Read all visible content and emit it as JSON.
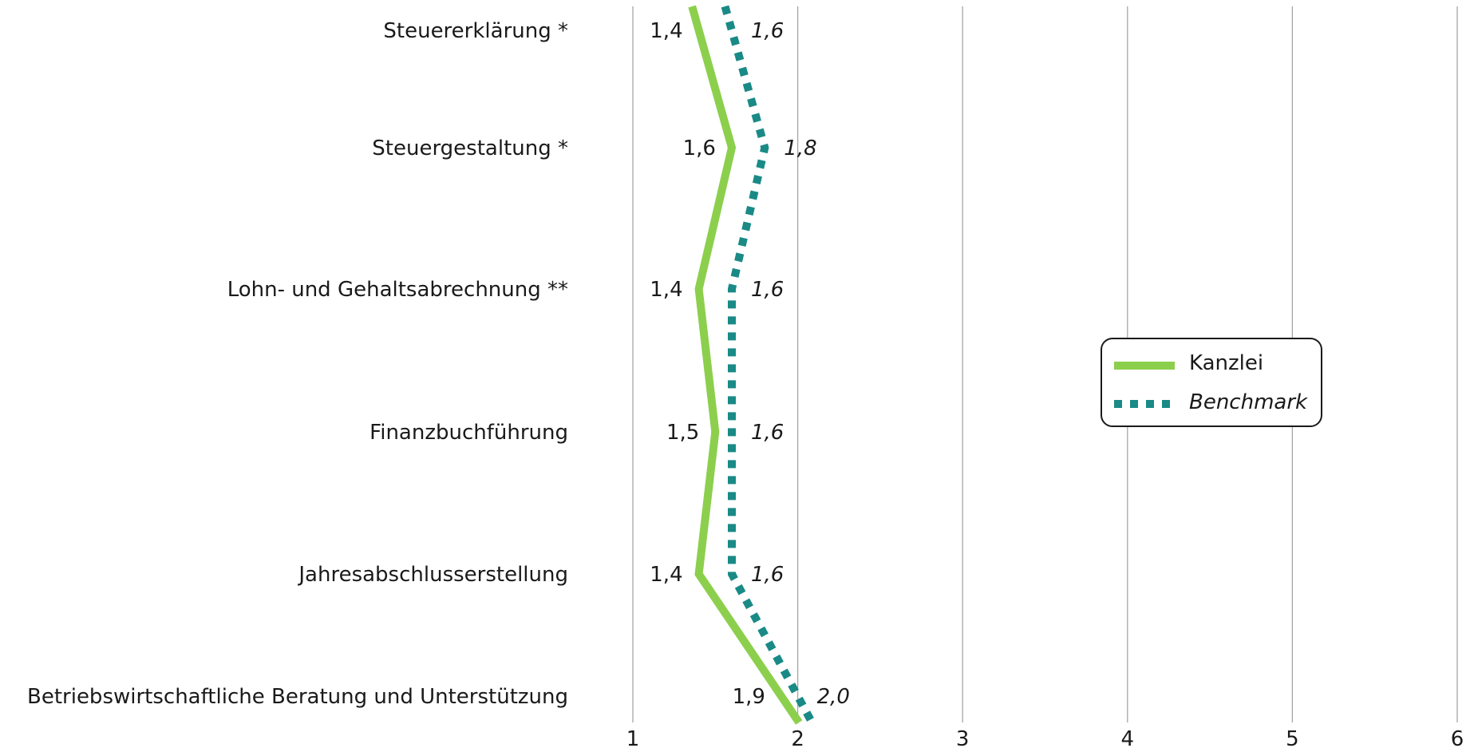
{
  "chart_data": {
    "type": "line",
    "orientation": "horizontal",
    "categories": [
      "Steuererklärung *",
      "Steuergestaltung *",
      "Lohn- und Gehaltsabrechnung **",
      "Finanzbuchführung",
      "Jahresabschlusserstellung",
      "Betriebswirtschaftliche Beratung und Unterstützung"
    ],
    "series": [
      {
        "name": "Kanzlei",
        "values": [
          1.4,
          1.6,
          1.4,
          1.5,
          1.4,
          1.9
        ],
        "labels": [
          "1,4",
          "1,6",
          "1,4",
          "1,5",
          "1,4",
          "1,9"
        ],
        "color": "#8ccf4d",
        "style": "solid"
      },
      {
        "name": "Benchmark",
        "values": [
          1.6,
          1.8,
          1.6,
          1.6,
          1.6,
          2.0
        ],
        "labels": [
          "1,6",
          "1,8",
          "1,6",
          "1,6",
          "1,6",
          "2,0"
        ],
        "color": "#1a8a86",
        "style": "dotted"
      }
    ],
    "xlim": [
      1,
      6
    ],
    "xticks": [
      "1",
      "2",
      "3",
      "4",
      "5",
      "6"
    ],
    "grid": "vertical",
    "legend": "right"
  }
}
